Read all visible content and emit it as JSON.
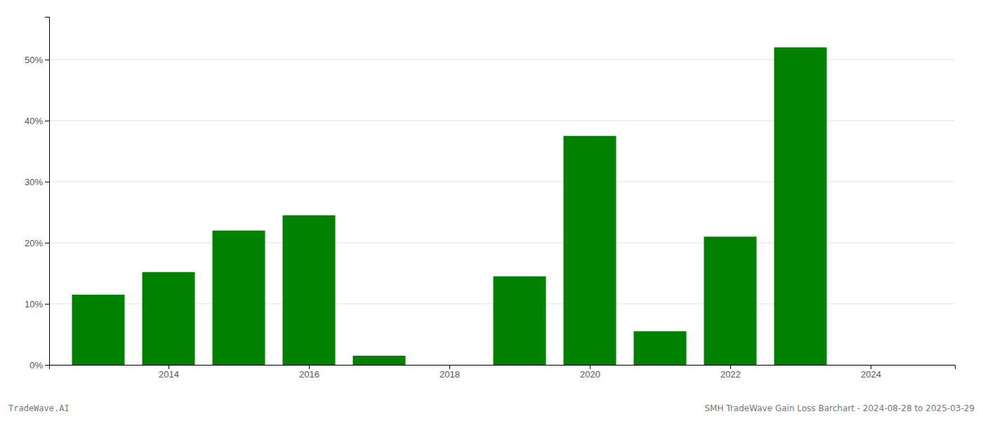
{
  "chart_data": {
    "type": "bar",
    "title": "SMH TradeWave Gain Loss Barchart - 2024-08-28 to 2025-03-29",
    "annotations": [
      "TradeWave.AI"
    ],
    "x": [
      2013,
      2014,
      2015,
      2016,
      2017,
      2018,
      2019,
      2020,
      2021,
      2022,
      2023,
      2024
    ],
    "values": [
      11.5,
      15.2,
      22.0,
      24.5,
      1.5,
      0.0,
      14.5,
      37.5,
      5.5,
      21.0,
      52.0,
      0.0
    ],
    "color": "#008000",
    "xlim": [
      2012.3,
      2025.2
    ],
    "xticks": [
      2014,
      2016,
      2018,
      2020,
      2022,
      2024
    ],
    "ylim": [
      0,
      57
    ],
    "yticks": [
      {
        "value": 0,
        "label": "0%"
      },
      {
        "value": 10,
        "label": "10%"
      },
      {
        "value": 20,
        "label": "20%"
      },
      {
        "value": 30,
        "label": "30%"
      },
      {
        "value": 40,
        "label": "40%"
      },
      {
        "value": 50,
        "label": "50%"
      }
    ],
    "grid": true
  }
}
